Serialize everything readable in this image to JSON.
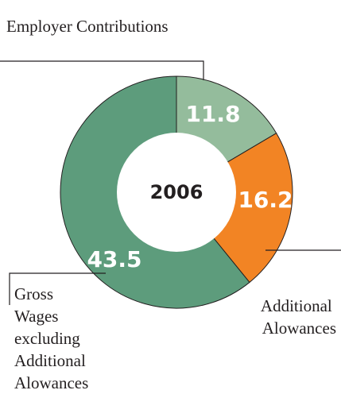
{
  "chart_data": {
    "type": "pie",
    "center_label": "2006",
    "series": [
      {
        "name": "Employer Contributions",
        "value": 11.8,
        "color": "#94bc9c"
      },
      {
        "name": "Additional Alowances",
        "value": 16.2,
        "color": "#f28424"
      },
      {
        "name": "Gross Wages excluding Additional Alowances",
        "value": 43.5,
        "color": "#5d9c7c"
      }
    ],
    "labels": {
      "employer": [
        "Employer Contributions"
      ],
      "additional": [
        "Additional",
        "Alowances"
      ],
      "gross": [
        "Gross",
        "Wages",
        "excluding",
        "Additional",
        "Alowances"
      ]
    }
  }
}
